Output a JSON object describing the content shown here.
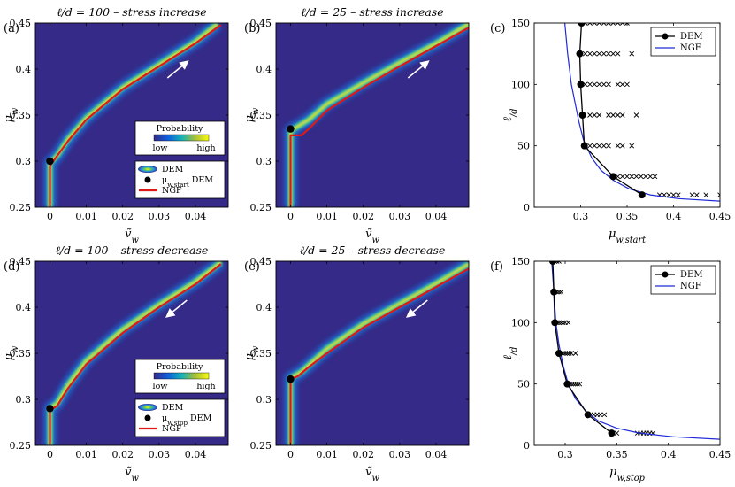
{
  "chart_data": [
    {
      "type": "heatmap",
      "panel_label": "(a)",
      "title": "ℓ/d = 100 – stress increase",
      "xlabel": "ṽw",
      "ylabel": "μw",
      "xlim": [
        -0.004,
        0.049
      ],
      "ylim": [
        0.25,
        0.45
      ],
      "xticks": [
        0,
        0.01,
        0.02,
        0.03,
        0.04
      ],
      "xtick_labels": [
        "0",
        "0.01",
        "0.02",
        "0.03",
        "0.04"
      ],
      "yticks": [
        0.25,
        0.3,
        0.35,
        0.4,
        0.45
      ],
      "ytick_labels": [
        "0.25",
        "0.3",
        "0.35",
        "0.4",
        "0.45"
      ],
      "arrow": "up",
      "marker_point": {
        "x": 0,
        "y": 0.3
      },
      "ngf_curve": {
        "x": [
          0,
          0,
          0.0015,
          0.005,
          0.01,
          0.02,
          0.03,
          0.04,
          0.047
        ],
        "y": [
          0.25,
          0.295,
          0.303,
          0.322,
          0.345,
          0.378,
          0.403,
          0.428,
          0.448
        ]
      },
      "dem_curve": {
        "x": [
          0,
          0,
          0.002,
          0.005,
          0.01,
          0.02,
          0.03,
          0.04,
          0.046
        ],
        "y": [
          0.25,
          0.298,
          0.306,
          0.324,
          0.347,
          0.38,
          0.405,
          0.43,
          0.449
        ]
      },
      "legend": {
        "title": "Probability",
        "low": "low",
        "high": "high",
        "dem": "DEM",
        "point": "μw,start DEM",
        "ngf": "NGF"
      }
    },
    {
      "type": "heatmap",
      "panel_label": "(b)",
      "title": "ℓ/d = 25 – stress increase",
      "xlabel": "ṽw",
      "ylabel": "μw",
      "xlim": [
        -0.004,
        0.049
      ],
      "ylim": [
        0.25,
        0.45
      ],
      "xticks": [
        0,
        0.01,
        0.02,
        0.03,
        0.04
      ],
      "xtick_labels": [
        "0",
        "0.01",
        "0.02",
        "0.03",
        "0.04"
      ],
      "yticks": [
        0.25,
        0.3,
        0.35,
        0.4,
        0.45
      ],
      "ytick_labels": [
        "0.25",
        "0.3",
        "0.35",
        "0.4",
        "0.45"
      ],
      "arrow": "up",
      "marker_point": {
        "x": 0,
        "y": 0.335
      },
      "ngf_curve": {
        "x": [
          0,
          0,
          0.003,
          0.005,
          0.01,
          0.02,
          0.03,
          0.04,
          0.049
        ],
        "y": [
          0.25,
          0.328,
          0.328,
          0.335,
          0.355,
          0.38,
          0.403,
          0.425,
          0.445
        ]
      },
      "dem_curve": {
        "x": [
          0,
          0,
          0.005,
          0.01,
          0.02,
          0.03,
          0.04,
          0.049
        ],
        "y": [
          0.25,
          0.333,
          0.345,
          0.362,
          0.385,
          0.407,
          0.428,
          0.449
        ]
      },
      "legend": null
    },
    {
      "type": "scatter",
      "panel_label": "(c)",
      "title": "",
      "xlabel": "μw,start",
      "ylabel": "ℓ/d",
      "xlim": [
        0.25,
        0.45
      ],
      "ylim": [
        0,
        150
      ],
      "xticks": [
        0.3,
        0.35,
        0.4,
        0.45
      ],
      "xtick_labels": [
        "0.3",
        "0.35",
        "0.4",
        "0.45"
      ],
      "yticks": [
        0,
        50,
        100,
        150
      ],
      "ytick_labels": [
        "0",
        "50",
        "100",
        "150"
      ],
      "series": [
        {
          "name": "DEM",
          "x": [
            0.301,
            0.299,
            0.3,
            0.302,
            0.304,
            0.335,
            0.366
          ],
          "y": [
            150,
            125,
            100,
            75,
            50,
            25,
            10
          ]
        },
        {
          "name": "NGF",
          "x": [
            0.283,
            0.286,
            0.29,
            0.294,
            0.298,
            0.303,
            0.312,
            0.322,
            0.335,
            0.352,
            0.375,
            0.405,
            0.45
          ],
          "y": [
            150,
            125,
            100,
            85,
            70,
            55,
            40,
            30,
            22,
            15,
            10,
            7,
            5
          ]
        },
        {
          "name": "samples",
          "points": [
            [
              0.305,
              150
            ],
            [
              0.31,
              150
            ],
            [
              0.315,
              150
            ],
            [
              0.32,
              150
            ],
            [
              0.325,
              150
            ],
            [
              0.33,
              150
            ],
            [
              0.335,
              150
            ],
            [
              0.34,
              150
            ],
            [
              0.345,
              150
            ],
            [
              0.35,
              150
            ],
            [
              0.305,
              125
            ],
            [
              0.31,
              125
            ],
            [
              0.315,
              125
            ],
            [
              0.32,
              125
            ],
            [
              0.325,
              125
            ],
            [
              0.33,
              125
            ],
            [
              0.335,
              125
            ],
            [
              0.34,
              125
            ],
            [
              0.355,
              125
            ],
            [
              0.305,
              100
            ],
            [
              0.31,
              100
            ],
            [
              0.315,
              100
            ],
            [
              0.32,
              100
            ],
            [
              0.325,
              100
            ],
            [
              0.33,
              100
            ],
            [
              0.34,
              100
            ],
            [
              0.345,
              100
            ],
            [
              0.35,
              100
            ],
            [
              0.31,
              75
            ],
            [
              0.315,
              75
            ],
            [
              0.32,
              75
            ],
            [
              0.33,
              75
            ],
            [
              0.335,
              75
            ],
            [
              0.34,
              75
            ],
            [
              0.345,
              75
            ],
            [
              0.36,
              75
            ],
            [
              0.31,
              50
            ],
            [
              0.315,
              50
            ],
            [
              0.32,
              50
            ],
            [
              0.325,
              50
            ],
            [
              0.33,
              50
            ],
            [
              0.34,
              50
            ],
            [
              0.345,
              50
            ],
            [
              0.355,
              50
            ],
            [
              0.34,
              25
            ],
            [
              0.345,
              25
            ],
            [
              0.35,
              25
            ],
            [
              0.355,
              25
            ],
            [
              0.36,
              25
            ],
            [
              0.365,
              25
            ],
            [
              0.37,
              25
            ],
            [
              0.375,
              25
            ],
            [
              0.38,
              25
            ],
            [
              0.385,
              10
            ],
            [
              0.39,
              10
            ],
            [
              0.395,
              10
            ],
            [
              0.4,
              10
            ],
            [
              0.405,
              10
            ],
            [
              0.42,
              10
            ],
            [
              0.425,
              10
            ],
            [
              0.435,
              10
            ],
            [
              0.45,
              10
            ]
          ]
        }
      ],
      "legend_labels": [
        "DEM",
        "NGF"
      ]
    },
    {
      "type": "heatmap",
      "panel_label": "(d)",
      "title": "ℓ/d = 100 – stress decrease",
      "xlabel": "ṽw",
      "ylabel": "μw",
      "xlim": [
        -0.004,
        0.049
      ],
      "ylim": [
        0.25,
        0.45
      ],
      "xticks": [
        0,
        0.01,
        0.02,
        0.03,
        0.04
      ],
      "xtick_labels": [
        "0",
        "0.01",
        "0.02",
        "0.03",
        "0.04"
      ],
      "yticks": [
        0.25,
        0.3,
        0.35,
        0.4,
        0.45
      ],
      "ytick_labels": [
        "0.25",
        "0.3",
        "0.35",
        "0.4",
        "0.45"
      ],
      "arrow": "down",
      "marker_point": {
        "x": 0,
        "y": 0.29
      },
      "ngf_curve": {
        "x": [
          0,
          0,
          0.002,
          0.005,
          0.01,
          0.02,
          0.03,
          0.04,
          0.047
        ],
        "y": [
          0.25,
          0.288,
          0.293,
          0.312,
          0.338,
          0.372,
          0.4,
          0.425,
          0.447
        ]
      },
      "dem_curve": {
        "x": [
          0,
          0,
          0.002,
          0.005,
          0.01,
          0.02,
          0.03,
          0.04,
          0.047
        ],
        "y": [
          0.25,
          0.29,
          0.296,
          0.316,
          0.342,
          0.376,
          0.403,
          0.428,
          0.449
        ]
      },
      "legend": {
        "title": "Probability",
        "low": "low",
        "high": "high",
        "dem": "DEM",
        "point": "μw,stop DEM",
        "ngf": "NGF"
      }
    },
    {
      "type": "heatmap",
      "panel_label": "(e)",
      "title": "ℓ/d = 25 – stress decrease",
      "xlabel": "ṽw",
      "ylabel": "μw",
      "xlim": [
        -0.004,
        0.049
      ],
      "ylim": [
        0.25,
        0.45
      ],
      "xticks": [
        0,
        0.01,
        0.02,
        0.03,
        0.04
      ],
      "xtick_labels": [
        "0",
        "0.01",
        "0.02",
        "0.03",
        "0.04"
      ],
      "yticks": [
        0.25,
        0.3,
        0.35,
        0.4,
        0.45
      ],
      "ytick_labels": [
        "0.25",
        "0.3",
        "0.35",
        "0.4",
        "0.45"
      ],
      "arrow": "down",
      "marker_point": {
        "x": 0,
        "y": 0.322
      },
      "ngf_curve": {
        "x": [
          0,
          0,
          0.002,
          0.005,
          0.01,
          0.02,
          0.03,
          0.04,
          0.049
        ],
        "y": [
          0.25,
          0.322,
          0.325,
          0.335,
          0.35,
          0.378,
          0.4,
          0.422,
          0.442
        ]
      },
      "dem_curve": {
        "x": [
          0,
          0,
          0.003,
          0.01,
          0.02,
          0.03,
          0.04,
          0.049
        ],
        "y": [
          0.25,
          0.323,
          0.33,
          0.355,
          0.382,
          0.404,
          0.426,
          0.447
        ]
      },
      "legend": null
    },
    {
      "type": "scatter",
      "panel_label": "(f)",
      "title": "",
      "xlabel": "μw,stop",
      "ylabel": "ℓ/d",
      "xlim": [
        0.27,
        0.45
      ],
      "ylim": [
        0,
        150
      ],
      "xticks": [
        0.3,
        0.35,
        0.4,
        0.45
      ],
      "xtick_labels": [
        "0.3",
        "0.35",
        "0.4",
        "0.45"
      ],
      "yticks": [
        0,
        50,
        100,
        150
      ],
      "ytick_labels": [
        "0",
        "50",
        "100",
        "150"
      ],
      "series": [
        {
          "name": "DEM",
          "x": [
            0.288,
            0.289,
            0.29,
            0.294,
            0.302,
            0.322,
            0.345
          ],
          "y": [
            150,
            125,
            100,
            75,
            50,
            25,
            10
          ]
        },
        {
          "name": "NGF",
          "x": [
            0.287,
            0.289,
            0.291,
            0.294,
            0.298,
            0.303,
            0.31,
            0.32,
            0.332,
            0.35,
            0.372,
            0.405,
            0.45
          ],
          "y": [
            150,
            125,
            100,
            82,
            65,
            50,
            38,
            28,
            20,
            14,
            10,
            7,
            5
          ]
        },
        {
          "name": "samples",
          "points": [
            [
              0.29,
              150
            ],
            [
              0.292,
              150
            ],
            [
              0.294,
              150
            ],
            [
              0.29,
              125
            ],
            [
              0.292,
              125
            ],
            [
              0.294,
              125
            ],
            [
              0.296,
              125
            ],
            [
              0.292,
              100
            ],
            [
              0.294,
              100
            ],
            [
              0.296,
              100
            ],
            [
              0.298,
              100
            ],
            [
              0.3,
              100
            ],
            [
              0.303,
              100
            ],
            [
              0.296,
              75
            ],
            [
              0.298,
              75
            ],
            [
              0.3,
              75
            ],
            [
              0.302,
              75
            ],
            [
              0.304,
              75
            ],
            [
              0.306,
              75
            ],
            [
              0.31,
              75
            ],
            [
              0.304,
              50
            ],
            [
              0.306,
              50
            ],
            [
              0.308,
              50
            ],
            [
              0.31,
              50
            ],
            [
              0.312,
              50
            ],
            [
              0.314,
              50
            ],
            [
              0.325,
              25
            ],
            [
              0.328,
              25
            ],
            [
              0.331,
              25
            ],
            [
              0.334,
              25
            ],
            [
              0.338,
              25
            ],
            [
              0.35,
              10
            ],
            [
              0.37,
              10
            ],
            [
              0.373,
              10
            ],
            [
              0.376,
              10
            ],
            [
              0.379,
              10
            ],
            [
              0.382,
              10
            ],
            [
              0.385,
              10
            ]
          ]
        }
      ],
      "legend_labels": [
        "DEM",
        "NGF"
      ]
    }
  ]
}
